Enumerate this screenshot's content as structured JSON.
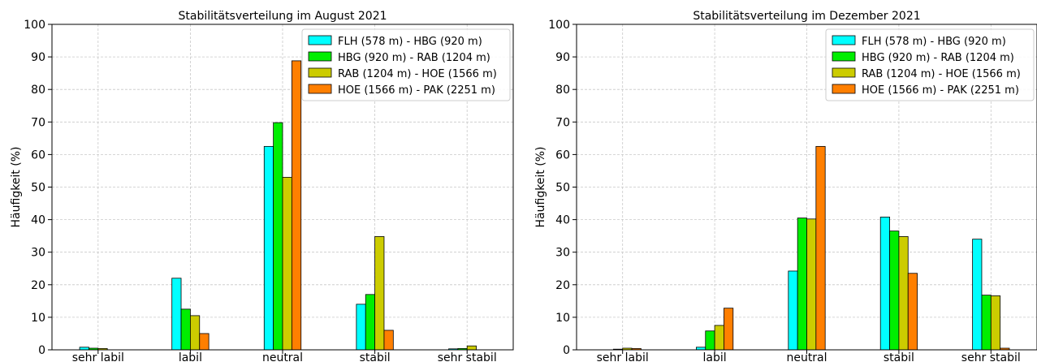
{
  "chart_data": [
    {
      "type": "bar",
      "title": "Stabilitätsverteilung im August 2021",
      "xlabel": "",
      "ylabel": "Häufigkeit (%)",
      "ylim": [
        0,
        100
      ],
      "yticks": [
        "0",
        "10",
        "20",
        "30",
        "40",
        "50",
        "60",
        "70",
        "80",
        "90",
        "100"
      ],
      "grid": true,
      "legend_position": "top-right",
      "categories": [
        "sehr labil",
        "labil",
        "neutral",
        "stabil",
        "sehr stabil"
      ],
      "series": [
        {
          "name": "FLH (578 m) - HBG (920 m)",
          "color": "#00ffff",
          "values": [
            0.8,
            22.0,
            62.5,
            14.0,
            0.3
          ]
        },
        {
          "name": "HBG (920 m) - RAB (1204 m)",
          "color": "#00ee00",
          "values": [
            0.5,
            12.5,
            69.8,
            17.0,
            0.4
          ]
        },
        {
          "name": "RAB (1204 m) - HOE (1566 m)",
          "color": "#cccc00",
          "values": [
            0.4,
            10.5,
            53.0,
            34.8,
            1.2
          ]
        },
        {
          "name": "HOE (1566 m) - PAK (2251 m)",
          "color": "#ff7f00",
          "values": [
            0.0,
            5.0,
            88.8,
            6.0,
            0.0
          ]
        }
      ]
    },
    {
      "type": "bar",
      "title": "Stabilitätsverteilung im Dezember 2021",
      "xlabel": "",
      "ylabel": "Häufigkeit (%)",
      "ylim": [
        0,
        100
      ],
      "yticks": [
        "0",
        "10",
        "20",
        "30",
        "40",
        "50",
        "60",
        "70",
        "80",
        "90",
        "100"
      ],
      "grid": true,
      "legend_position": "top-right",
      "categories": [
        "sehr labil",
        "labil",
        "neutral",
        "stabil",
        "sehr stabil"
      ],
      "series": [
        {
          "name": "FLH (578 m) - HBG (920 m)",
          "color": "#00ffff",
          "values": [
            0.0,
            0.8,
            24.2,
            40.8,
            34.0
          ]
        },
        {
          "name": "HBG (920 m) - RAB (1204 m)",
          "color": "#00ee00",
          "values": [
            0.2,
            5.8,
            40.5,
            36.5,
            16.8
          ]
        },
        {
          "name": "RAB (1204 m) - HOE (1566 m)",
          "color": "#cccc00",
          "values": [
            0.5,
            7.5,
            40.2,
            34.8,
            16.6
          ]
        },
        {
          "name": "HOE (1566 m) - PAK (2251 m)",
          "color": "#ff7f00",
          "values": [
            0.4,
            12.8,
            62.5,
            23.5,
            0.5
          ]
        }
      ]
    }
  ]
}
